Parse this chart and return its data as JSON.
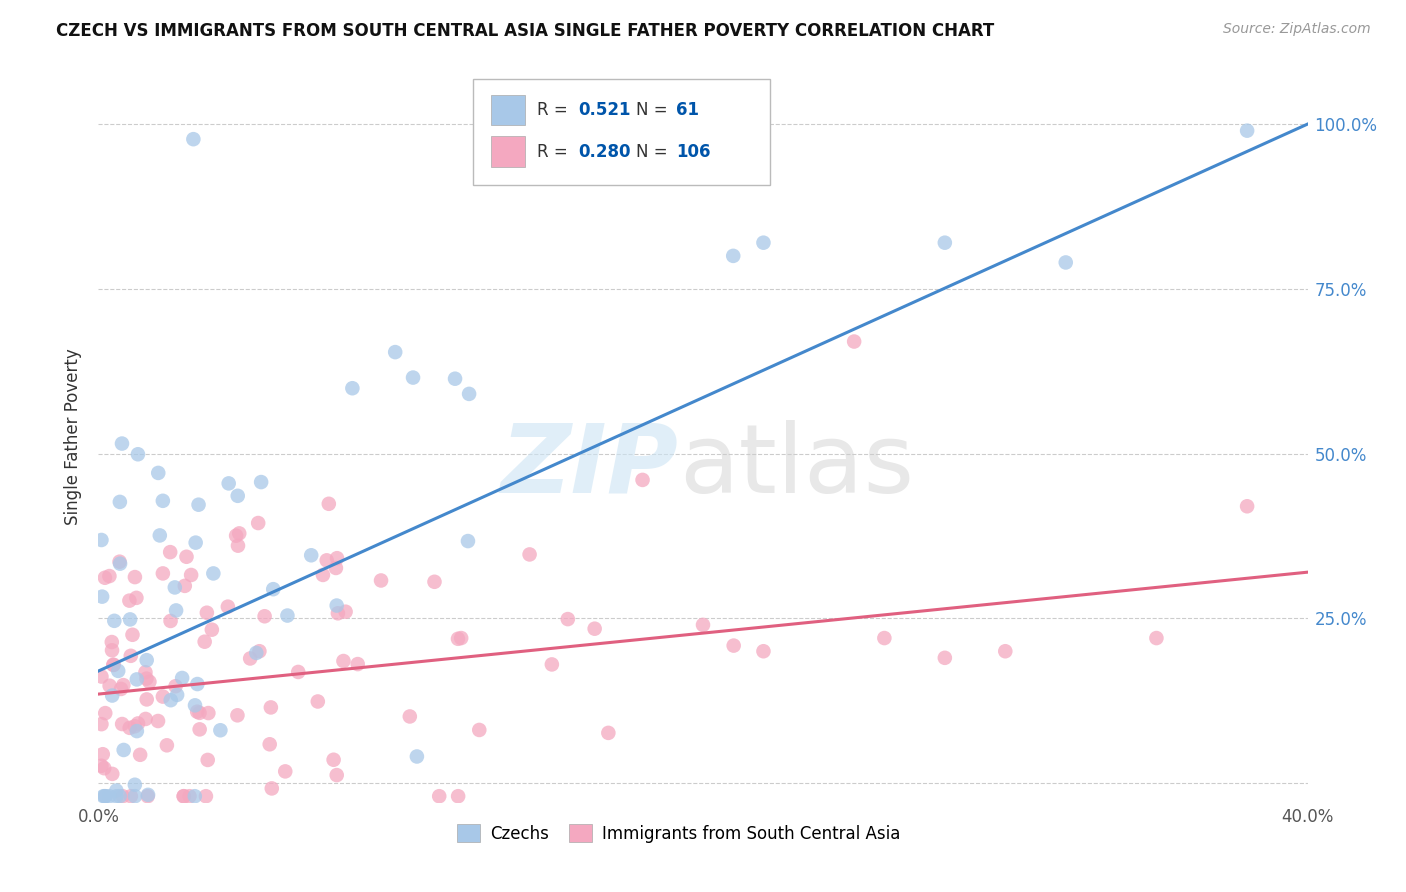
{
  "title": "CZECH VS IMMIGRANTS FROM SOUTH CENTRAL ASIA SINGLE FATHER POVERTY CORRELATION CHART",
  "source": "Source: ZipAtlas.com",
  "ylabel": "Single Father Poverty",
  "xmin": 0.0,
  "xmax": 0.4,
  "ymin": -0.03,
  "ymax": 1.08,
  "yticks": [
    0.0,
    0.25,
    0.5,
    0.75,
    1.0
  ],
  "ytick_labels": [
    "",
    "25.0%",
    "50.0%",
    "75.0%",
    "100.0%"
  ],
  "xticks": [
    0.0,
    0.1,
    0.2,
    0.3,
    0.4
  ],
  "xtick_labels": [
    "0.0%",
    "",
    "",
    "",
    "40.0%"
  ],
  "czech_color": "#a8c8e8",
  "immigrant_color": "#f4a8c0",
  "czech_line_color": "#4488cc",
  "immigrant_line_color": "#e06080",
  "legend_color": "#0055aa",
  "background_color": "#ffffff",
  "grid_color": "#cccccc",
  "czech_line_x0": 0.0,
  "czech_line_y0": 0.17,
  "czech_line_x1": 0.4,
  "czech_line_y1": 1.0,
  "imm_line_x0": 0.0,
  "imm_line_y0": 0.135,
  "imm_line_x1": 0.4,
  "imm_line_y1": 0.32,
  "czech_R": "0.521",
  "czech_N": "61",
  "imm_R": "0.280",
  "imm_N": "106"
}
